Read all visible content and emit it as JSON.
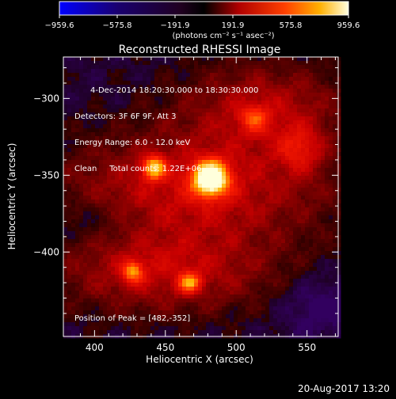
{
  "chart_data": {
    "type": "heatmap",
    "title": "Reconstructed RHESSI Image",
    "xlabel": "Heliocentric X (arcsec)",
    "ylabel": "Heliocentric Y (arcsec)",
    "xlim": [
      378,
      572
    ],
    "ylim": [
      -455,
      -273
    ],
    "x_ticks": [
      400,
      450,
      500,
      550
    ],
    "y_ticks": [
      -400,
      -350,
      -300
    ],
    "info_lines": [
      "4-Dec-2014 18:20:30.000 to 18:30:30.000",
      "Detectors: 3F 6F 9F, Att 3",
      "Energy Range: 6.0 - 12.0 keV",
      "Clean     Total counts: 1.22E+06"
    ],
    "peak_label": "Position of Peak = [482,-352]",
    "peak": {
      "x": 482,
      "y": -352,
      "value": 959.6
    },
    "colorbar": {
      "min": -959.6,
      "max": 959.6,
      "tick_labels": [
        "−959.6",
        "−575.8",
        "−191.9",
        "191.9",
        "575.8",
        "959.6"
      ],
      "unit_label": "(photons cm⁻² s⁻¹ asec⁻²)"
    },
    "sources": [
      {
        "x": 482,
        "y": -352,
        "value": 959.6
      },
      {
        "x": 442,
        "y": -345,
        "value": 560
      },
      {
        "x": 427,
        "y": -413,
        "value": 430
      },
      {
        "x": 467,
        "y": -420,
        "value": 470
      },
      {
        "x": 545,
        "y": -333,
        "value": 330
      },
      {
        "x": 513,
        "y": -313,
        "value": 330
      }
    ]
  },
  "date_stamp": "20-Aug-2017 13:20"
}
